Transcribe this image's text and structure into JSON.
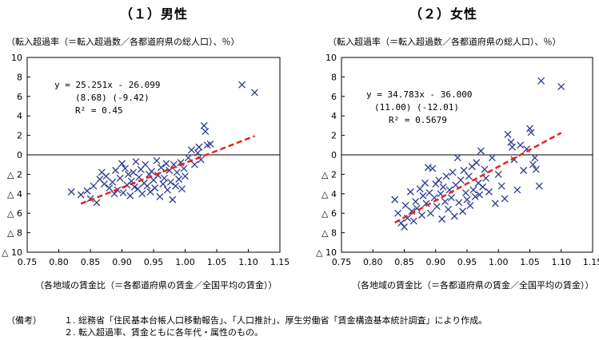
{
  "chart_data": [
    {
      "type": "scatter",
      "title": "（１）男性",
      "ylabel": "（転入超過率（＝転入超過数／各都道府県の総人口）、％）",
      "xlabel": "（各地域の賃金比（＝各都道府県の賃金／全国平均の賃金））",
      "xlim": [
        0.75,
        1.15
      ],
      "ylim": [
        -10,
        10
      ],
      "x_ticks": [
        "0.75",
        "0.80",
        "0.85",
        "0.90",
        "0.95",
        "1.00",
        "1.05",
        "1.10",
        "1.15"
      ],
      "y_ticks": [
        "10",
        "8",
        "6",
        "4",
        "2",
        "0",
        "△ 2",
        "△ 4",
        "△ 6",
        "△ 8",
        "△ 10"
      ],
      "marker": "x",
      "marker_color": "#2a3c8f",
      "trend_color": "#e8231a",
      "equation": [
        "y = 25.251x - 26.099",
        "(8.68)  (-9.42)",
        "R² = 0.45"
      ],
      "trendline": {
        "slope": 25.251,
        "intercept": -26.099,
        "x_range": [
          0.835,
          1.11
        ]
      },
      "points": [
        [
          0.82,
          -3.8
        ],
        [
          0.835,
          -4.1
        ],
        [
          0.845,
          -3.7
        ],
        [
          0.85,
          -4.5
        ],
        [
          0.855,
          -3.2
        ],
        [
          0.86,
          -4.9
        ],
        [
          0.865,
          -2.5
        ],
        [
          0.868,
          -1.8
        ],
        [
          0.872,
          -3.0
        ],
        [
          0.875,
          -2.2
        ],
        [
          0.88,
          -3.4
        ],
        [
          0.885,
          -2.8
        ],
        [
          0.888,
          -4.0
        ],
        [
          0.89,
          -1.6
        ],
        [
          0.893,
          -3.6
        ],
        [
          0.897,
          -2.4
        ],
        [
          0.9,
          -0.9
        ],
        [
          0.902,
          -3.9
        ],
        [
          0.905,
          -1.4
        ],
        [
          0.908,
          -3.1
        ],
        [
          0.91,
          -2.0
        ],
        [
          0.913,
          -4.2
        ],
        [
          0.915,
          -2.7
        ],
        [
          0.918,
          -1.8
        ],
        [
          0.92,
          -3.3
        ],
        [
          0.922,
          -0.7
        ],
        [
          0.925,
          -3.5
        ],
        [
          0.927,
          -2.3
        ],
        [
          0.93,
          -1.5
        ],
        [
          0.932,
          -4.0
        ],
        [
          0.935,
          -2.9
        ],
        [
          0.937,
          -1.0
        ],
        [
          0.94,
          -3.2
        ],
        [
          0.943,
          -2.0
        ],
        [
          0.945,
          -3.8
        ],
        [
          0.947,
          -1.7
        ],
        [
          0.95,
          -2.6
        ],
        [
          0.952,
          -3.4
        ],
        [
          0.955,
          -0.6
        ],
        [
          0.957,
          -2.1
        ],
        [
          0.96,
          -4.3
        ],
        [
          0.962,
          -1.3
        ],
        [
          0.965,
          -3.0
        ],
        [
          0.967,
          -2.4
        ],
        [
          0.97,
          -0.9
        ],
        [
          0.972,
          -3.6
        ],
        [
          0.975,
          -1.6
        ],
        [
          0.977,
          -2.8
        ],
        [
          0.98,
          -4.6
        ],
        [
          0.982,
          -1.0
        ],
        [
          0.985,
          -3.2
        ],
        [
          0.987,
          -1.8
        ],
        [
          0.99,
          -2.5
        ],
        [
          0.993,
          -0.8
        ],
        [
          0.995,
          -3.5
        ],
        [
          0.998,
          -1.4
        ],
        [
          1.0,
          -2.2
        ],
        [
          1.005,
          -0.3
        ],
        [
          1.01,
          0.5
        ],
        [
          1.015,
          -1.0
        ],
        [
          1.02,
          0.2
        ],
        [
          1.022,
          0.8
        ],
        [
          1.025,
          -0.5
        ],
        [
          1.03,
          3.0
        ],
        [
          1.032,
          2.4
        ],
        [
          1.035,
          1.0
        ],
        [
          1.04,
          1.1
        ],
        [
          1.09,
          7.2
        ],
        [
          1.11,
          6.4
        ]
      ]
    },
    {
      "type": "scatter",
      "title": "（２）女性",
      "ylabel": "（転入超過率（＝転入超過数／各都道府県の総人口）、％）",
      "xlabel": "（各地域の賃金比（＝各都道府県の賃金／全国平均の賃金））",
      "xlim": [
        0.75,
        1.15
      ],
      "ylim": [
        -10,
        10
      ],
      "x_ticks": [
        "0.75",
        "0.80",
        "0.85",
        "0.90",
        "0.95",
        "1.00",
        "1.05",
        "1.10",
        "1.15"
      ],
      "y_ticks": [
        "10",
        "8",
        "6",
        "4",
        "2",
        "0",
        "△ 2",
        "△ 4",
        "△ 6",
        "△ 8",
        "△ 10"
      ],
      "marker": "x",
      "marker_color": "#2a3c8f",
      "trend_color": "#e8231a",
      "equation": [
        "y = 34.783x - 36.000",
        "(11.00)  (-12.01)",
        "R² = 0.5679"
      ],
      "trendline": {
        "slope": 34.783,
        "intercept": -36.0,
        "x_range": [
          0.835,
          1.1
        ]
      },
      "points": [
        [
          0.835,
          -4.6
        ],
        [
          0.84,
          -6.0
        ],
        [
          0.845,
          -7.0
        ],
        [
          0.85,
          -7.4
        ],
        [
          0.852,
          -5.2
        ],
        [
          0.855,
          -6.5
        ],
        [
          0.86,
          -3.8
        ],
        [
          0.862,
          -5.8
        ],
        [
          0.865,
          -6.8
        ],
        [
          0.868,
          -4.8
        ],
        [
          0.87,
          -5.5
        ],
        [
          0.875,
          -3.5
        ],
        [
          0.878,
          -6.2
        ],
        [
          0.88,
          -4.2
        ],
        [
          0.883,
          -2.9
        ],
        [
          0.885,
          -5.0
        ],
        [
          0.888,
          -1.3
        ],
        [
          0.89,
          -3.9
        ],
        [
          0.892,
          -6.0
        ],
        [
          0.895,
          -1.4
        ],
        [
          0.898,
          -4.4
        ],
        [
          0.9,
          -3.0
        ],
        [
          0.902,
          -5.3
        ],
        [
          0.905,
          -2.6
        ],
        [
          0.908,
          -4.0
        ],
        [
          0.91,
          -6.6
        ],
        [
          0.912,
          -3.3
        ],
        [
          0.915,
          -4.8
        ],
        [
          0.917,
          -2.2
        ],
        [
          0.92,
          -5.6
        ],
        [
          0.922,
          -3.6
        ],
        [
          0.925,
          -4.4
        ],
        [
          0.927,
          -1.8
        ],
        [
          0.93,
          -6.3
        ],
        [
          0.932,
          -3.1
        ],
        [
          0.935,
          -0.3
        ],
        [
          0.937,
          -4.9
        ],
        [
          0.94,
          -2.6
        ],
        [
          0.943,
          -5.8
        ],
        [
          0.945,
          -1.6
        ],
        [
          0.948,
          -3.9
        ],
        [
          0.95,
          -4.6
        ],
        [
          0.953,
          -2.2
        ],
        [
          0.955,
          -5.2
        ],
        [
          0.958,
          -1.2
        ],
        [
          0.96,
          -3.6
        ],
        [
          0.963,
          -4.3
        ],
        [
          0.965,
          -0.8
        ],
        [
          0.968,
          -2.9
        ],
        [
          0.97,
          -4.1
        ],
        [
          0.972,
          0.4
        ],
        [
          0.975,
          -3.3
        ],
        [
          0.978,
          -1.5
        ],
        [
          0.98,
          -2.4
        ],
        [
          0.985,
          -3.8
        ],
        [
          0.99,
          -0.3
        ],
        [
          0.995,
          -5.0
        ],
        [
          1.0,
          -2.0
        ],
        [
          1.005,
          -3.2
        ],
        [
          1.01,
          -4.5
        ],
        [
          1.015,
          2.1
        ],
        [
          1.02,
          1.3
        ],
        [
          1.022,
          0.8
        ],
        [
          1.025,
          -0.5
        ],
        [
          1.03,
          -3.6
        ],
        [
          1.035,
          1.0
        ],
        [
          1.04,
          -1.6
        ],
        [
          1.045,
          0.6
        ],
        [
          1.05,
          2.7
        ],
        [
          1.052,
          2.3
        ],
        [
          1.055,
          -1.0
        ],
        [
          1.058,
          -0.3
        ],
        [
          1.06,
          -1.5
        ],
        [
          1.065,
          -3.2
        ],
        [
          1.068,
          7.6
        ],
        [
          1.1,
          7.0
        ]
      ]
    }
  ],
  "notes": {
    "head": "（備考）",
    "items": [
      {
        "num": "１.",
        "text": "総務省「住民基本台帳人口移動報告」、「人口推計」、厚生労働省「賃金構造基本統計調査」により作成。"
      },
      {
        "num": "２.",
        "text": "転入超過率、賃金ともに各年代・属性のもの。"
      }
    ]
  }
}
